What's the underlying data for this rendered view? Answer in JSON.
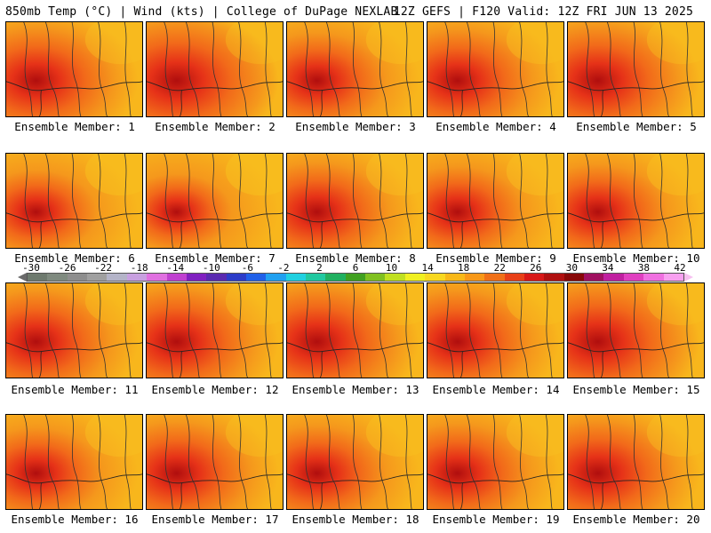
{
  "header": {
    "left": "850mb Temp (°C) | Wind (kts) | College of DuPage NEXLAB",
    "right": "12Z GEFS | F120 Valid: 12Z FRI JUN 13 2025"
  },
  "panels": [
    {
      "label": "Ensemble Member: 1",
      "hot": 0.75
    },
    {
      "label": "Ensemble Member: 2",
      "hot": 0.9
    },
    {
      "label": "Ensemble Member: 3",
      "hot": 0.6
    },
    {
      "label": "Ensemble Member: 4",
      "hot": 0.7
    },
    {
      "label": "Ensemble Member: 5",
      "hot": 0.8
    },
    {
      "label": "Ensemble Member: 6",
      "hot": 0.45
    },
    {
      "label": "Ensemble Member: 7",
      "hot": 0.35
    },
    {
      "label": "Ensemble Member: 8",
      "hot": 0.65
    },
    {
      "label": "Ensemble Member: 9",
      "hot": 0.55
    },
    {
      "label": "Ensemble Member: 10",
      "hot": 0.6
    },
    {
      "label": "Ensemble Member: 11",
      "hot": 0.7
    },
    {
      "label": "Ensemble Member: 12",
      "hot": 0.75
    },
    {
      "label": "Ensemble Member: 13",
      "hot": 0.8
    },
    {
      "label": "Ensemble Member: 14",
      "hot": 0.7
    },
    {
      "label": "Ensemble Member: 15",
      "hot": 0.85
    },
    {
      "label": "Ensemble Member: 16",
      "hot": 0.55
    },
    {
      "label": "Ensemble Member: 17",
      "hot": 0.7
    },
    {
      "label": "Ensemble Member: 18",
      "hot": 0.6
    },
    {
      "label": "Ensemble Member: 19",
      "hot": 0.65
    },
    {
      "label": "Ensemble Member: 20",
      "hot": 0.75
    }
  ],
  "colorbar": {
    "ticks": [
      "-30",
      "-26",
      "-22",
      "-18",
      "-14",
      "-10",
      "-6",
      "-2",
      "2",
      "6",
      "10",
      "14",
      "18",
      "22",
      "26",
      "30",
      "34",
      "38",
      "42"
    ],
    "colors": [
      "#6e7a6e",
      "#7f8a7f",
      "#8e8e8e",
      "#a0a0a0",
      "#b4b4c8",
      "#c8a0e0",
      "#e070e0",
      "#c040d0",
      "#8020c0",
      "#5a2ab0",
      "#2c3cc8",
      "#2060e8",
      "#20a0f0",
      "#20d0e0",
      "#20c8a0",
      "#20b060",
      "#40a020",
      "#80c020",
      "#c0e020",
      "#f0f020",
      "#f8d820",
      "#f8b818",
      "#f89818",
      "#f07018",
      "#e84018",
      "#d81818",
      "#b01010",
      "#880808",
      "#a01060",
      "#c020a0",
      "#e040c0",
      "#f070e0",
      "#f8a0f0"
    ]
  }
}
